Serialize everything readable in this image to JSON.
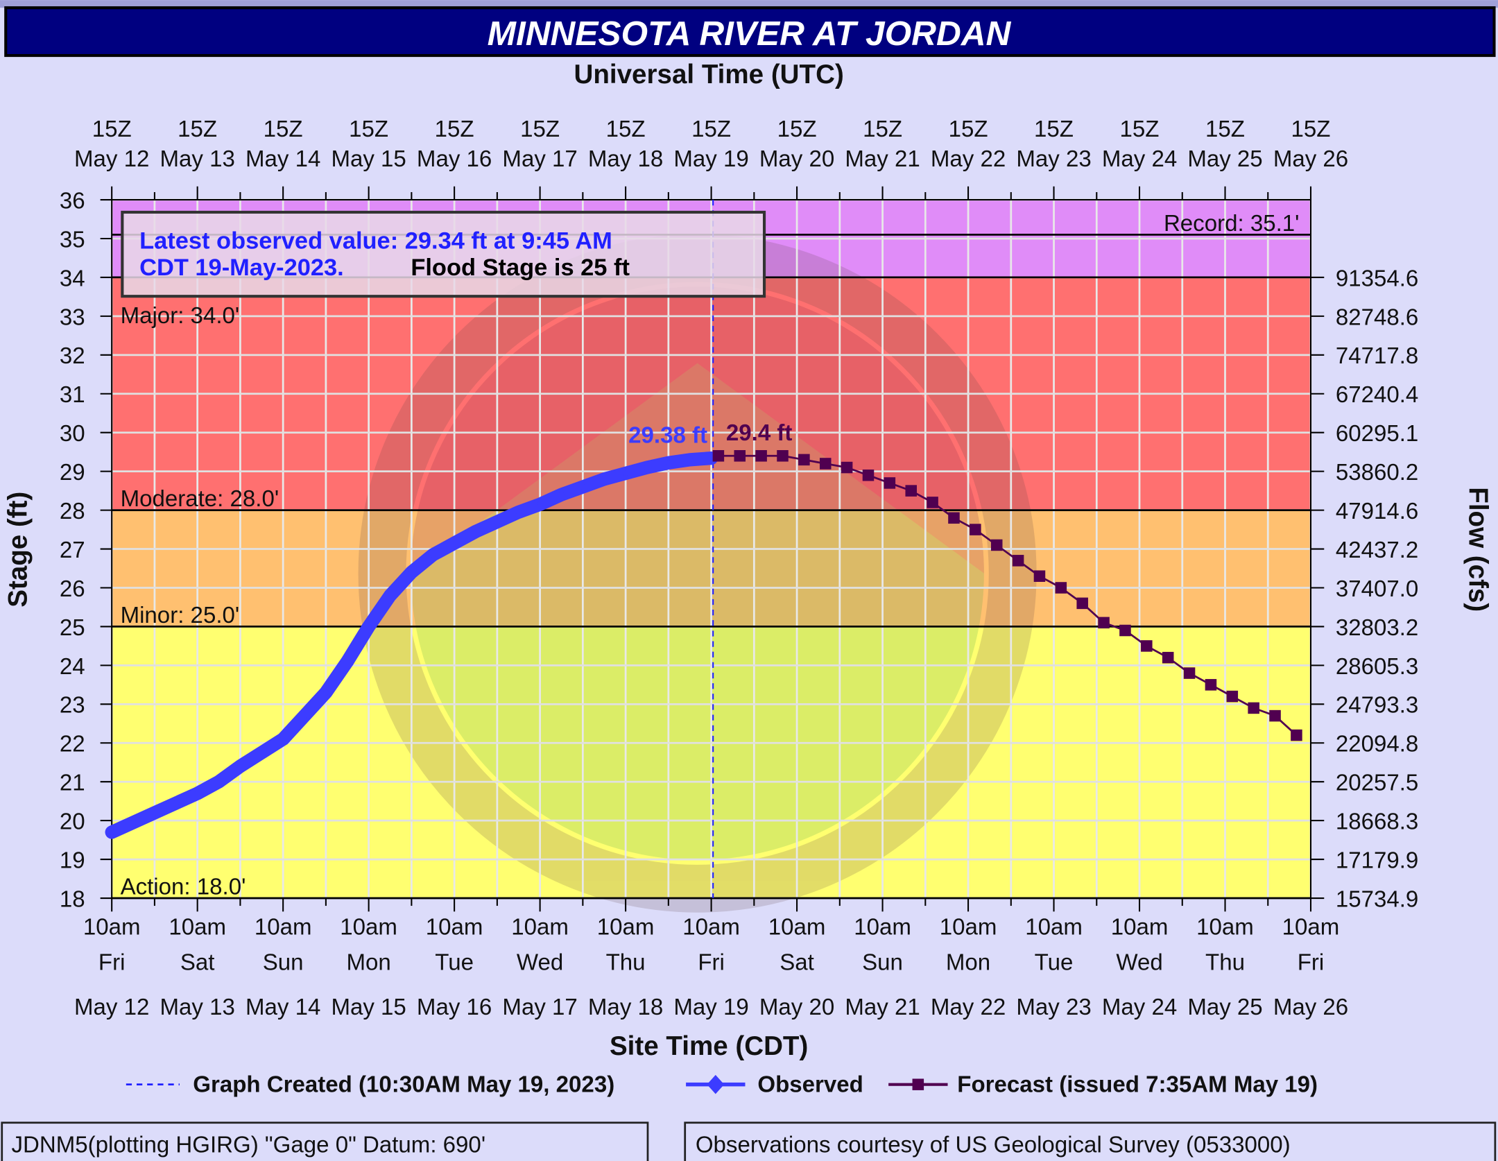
{
  "title": "MINNESOTA RIVER AT JORDAN",
  "top_axis_title": "Universal Time (UTC)",
  "bottom_axis_title": "Site Time (CDT)",
  "latest_box": {
    "observed": "Latest observed value: 29.34 ft at 9:45 AM",
    "observed_line2": "CDT 19-May-2023.",
    "flood_stage": "Flood Stage is 25 ft"
  },
  "legend": {
    "graph_created": "Graph Created (10:30AM May 19, 2023)",
    "observed": "Observed",
    "forecast": "Forecast (issued 7:35AM May 19)"
  },
  "footer": {
    "left": "JDNM5(plotting HGIRG) \"Gage 0\" Datum: 690'",
    "right": "Observations courtesy of US Geological Survey (0533000)"
  },
  "colors": {
    "title_bg": "#000080",
    "background": "#dcdcfa",
    "major": "#e08cf8",
    "moderate": "#ff7070",
    "minor": "#ffc070",
    "action": "#ffff70",
    "observed": "#3c3cff",
    "forecast": "#500050"
  },
  "chart_data": {
    "type": "line",
    "title": "MINNESOTA RIVER AT JORDAN",
    "ylabel": "Stage (ft)",
    "y2label": "Flow (cfs)",
    "ylim": [
      18,
      36
    ],
    "x_unit": "hours since 10am CDT May 12",
    "xlim": [
      0,
      336
    ],
    "x_ticks_utc": {
      "time": "15Z",
      "dates": [
        "May 12",
        "May 13",
        "May 14",
        "May 15",
        "May 16",
        "May 17",
        "May 18",
        "May 19",
        "May 20",
        "May 21",
        "May 22",
        "May 23",
        "May 24",
        "May 25",
        "May 26"
      ]
    },
    "x_ticks_cdt": {
      "time": "10am",
      "days": [
        "Fri",
        "Sat",
        "Sun",
        "Mon",
        "Tue",
        "Wed",
        "Thu",
        "Fri",
        "Sat",
        "Sun",
        "Mon",
        "Tue",
        "Wed",
        "Thu",
        "Fri"
      ],
      "dates": [
        "May 12",
        "May 13",
        "May 14",
        "May 15",
        "May 16",
        "May 17",
        "May 18",
        "May 19",
        "May 20",
        "May 21",
        "May 22",
        "May 23",
        "May 24",
        "May 25",
        "May 26"
      ]
    },
    "y_ticks": [
      "18",
      "19",
      "20",
      "21",
      "22",
      "23",
      "24",
      "25",
      "26",
      "27",
      "28",
      "29",
      "30",
      "31",
      "32",
      "33",
      "34",
      "35",
      "36"
    ],
    "flow_ticks": [
      {
        "stage": 18,
        "label": "15734.9"
      },
      {
        "stage": 19,
        "label": "17179.9"
      },
      {
        "stage": 20,
        "label": "18668.3"
      },
      {
        "stage": 21,
        "label": "20257.5"
      },
      {
        "stage": 22,
        "label": "22094.8"
      },
      {
        "stage": 23,
        "label": "24793.3"
      },
      {
        "stage": 24,
        "label": "28605.3"
      },
      {
        "stage": 25,
        "label": "32803.2"
      },
      {
        "stage": 26,
        "label": "37407.0"
      },
      {
        "stage": 27,
        "label": "42437.2"
      },
      {
        "stage": 28,
        "label": "47914.6"
      },
      {
        "stage": 29,
        "label": "53860.2"
      },
      {
        "stage": 30,
        "label": "60295.1"
      },
      {
        "stage": 31,
        "label": "67240.4"
      },
      {
        "stage": 32,
        "label": "74717.8"
      },
      {
        "stage": 33,
        "label": "82748.6"
      },
      {
        "stage": 34,
        "label": "91354.6"
      }
    ],
    "flood_categories": [
      {
        "name": "Record",
        "label": "Record: 35.1'",
        "stage": 35.1
      },
      {
        "name": "Major",
        "label": "Major: 34.0'",
        "stage": 34
      },
      {
        "name": "Moderate",
        "label": "Moderate: 28.0'",
        "stage": 28
      },
      {
        "name": "Minor",
        "label": "Minor: 25.0'",
        "stage": 25
      },
      {
        "name": "Action",
        "label": "Action: 18.0'",
        "stage": 18
      }
    ],
    "graph_created_x": 168.5,
    "series": [
      {
        "name": "Observed",
        "peak_label": "29.38 ft",
        "x": [
          0,
          6,
          12,
          18,
          24,
          30,
          36,
          42,
          48,
          54,
          60,
          66,
          72,
          78,
          84,
          90,
          96,
          102,
          108,
          114,
          120,
          126,
          132,
          138,
          144,
          150,
          156,
          162,
          168
        ],
        "y": [
          19.7,
          19.95,
          20.2,
          20.45,
          20.7,
          21.0,
          21.4,
          21.75,
          22.1,
          22.7,
          23.3,
          24.1,
          25.0,
          25.8,
          26.4,
          26.85,
          27.15,
          27.45,
          27.7,
          27.95,
          28.15,
          28.4,
          28.6,
          28.8,
          28.95,
          29.1,
          29.22,
          29.3,
          29.34
        ]
      },
      {
        "name": "Forecast",
        "peak_label": "29.4 ft",
        "x": [
          170,
          176,
          182,
          188,
          194,
          200,
          206,
          212,
          218,
          224,
          230,
          236,
          242,
          248,
          254,
          260,
          266,
          272,
          278,
          284,
          290,
          296,
          302,
          308,
          314,
          320,
          326,
          332
        ],
        "y": [
          29.4,
          29.4,
          29.4,
          29.4,
          29.3,
          29.2,
          29.1,
          28.9,
          28.7,
          28.5,
          28.2,
          27.8,
          27.5,
          27.1,
          26.7,
          26.3,
          26.0,
          25.6,
          25.1,
          24.9,
          24.5,
          24.2,
          23.8,
          23.5,
          23.2,
          22.9,
          22.7,
          22.2
        ]
      }
    ]
  }
}
